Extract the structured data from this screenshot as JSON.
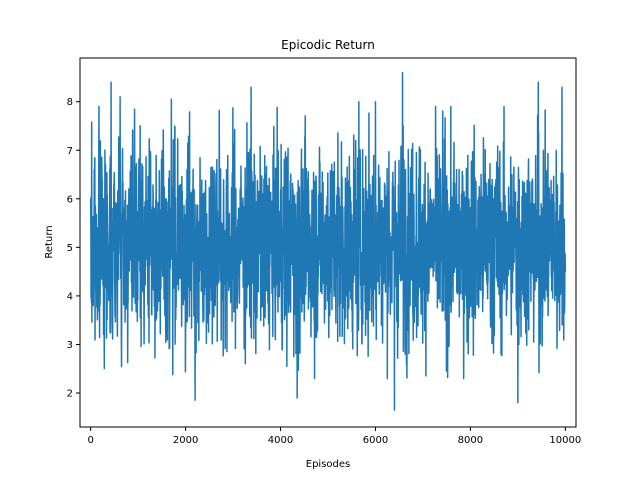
{
  "chart_data": {
    "type": "line",
    "title": "Epicodic Return",
    "xlabel": "Episodes",
    "ylabel": "Return",
    "xlim": [
      -225,
      10225
    ],
    "ylim": [
      1.3,
      8.9
    ],
    "xticks": [
      0,
      2000,
      4000,
      6000,
      8000,
      10000
    ],
    "yticks": [
      2,
      3,
      4,
      5,
      6,
      7,
      8
    ],
    "grid": false,
    "legend": "none",
    "series_color": "#1f77b4",
    "series": [
      {
        "points_summary": {
          "episodes": 10000,
          "x_start": 0,
          "x_end": 10000,
          "mean": 5.1,
          "typical_range": [
            3.0,
            7.3
          ],
          "min": 1.65,
          "max": 8.6
        },
        "peaks": [
          {
            "x": 430,
            "y": 8.4
          },
          {
            "x": 620,
            "y": 8.1
          },
          {
            "x": 1700,
            "y": 8.05
          },
          {
            "x": 3380,
            "y": 8.3
          },
          {
            "x": 5650,
            "y": 8.0
          },
          {
            "x": 6000,
            "y": 8.0
          },
          {
            "x": 6570,
            "y": 8.6
          },
          {
            "x": 9430,
            "y": 8.4
          },
          {
            "x": 9930,
            "y": 8.3
          }
        ],
        "troughs": [
          {
            "x": 2200,
            "y": 1.85
          },
          {
            "x": 4350,
            "y": 1.9
          },
          {
            "x": 6400,
            "y": 1.65
          },
          {
            "x": 9000,
            "y": 1.8
          }
        ]
      }
    ]
  }
}
